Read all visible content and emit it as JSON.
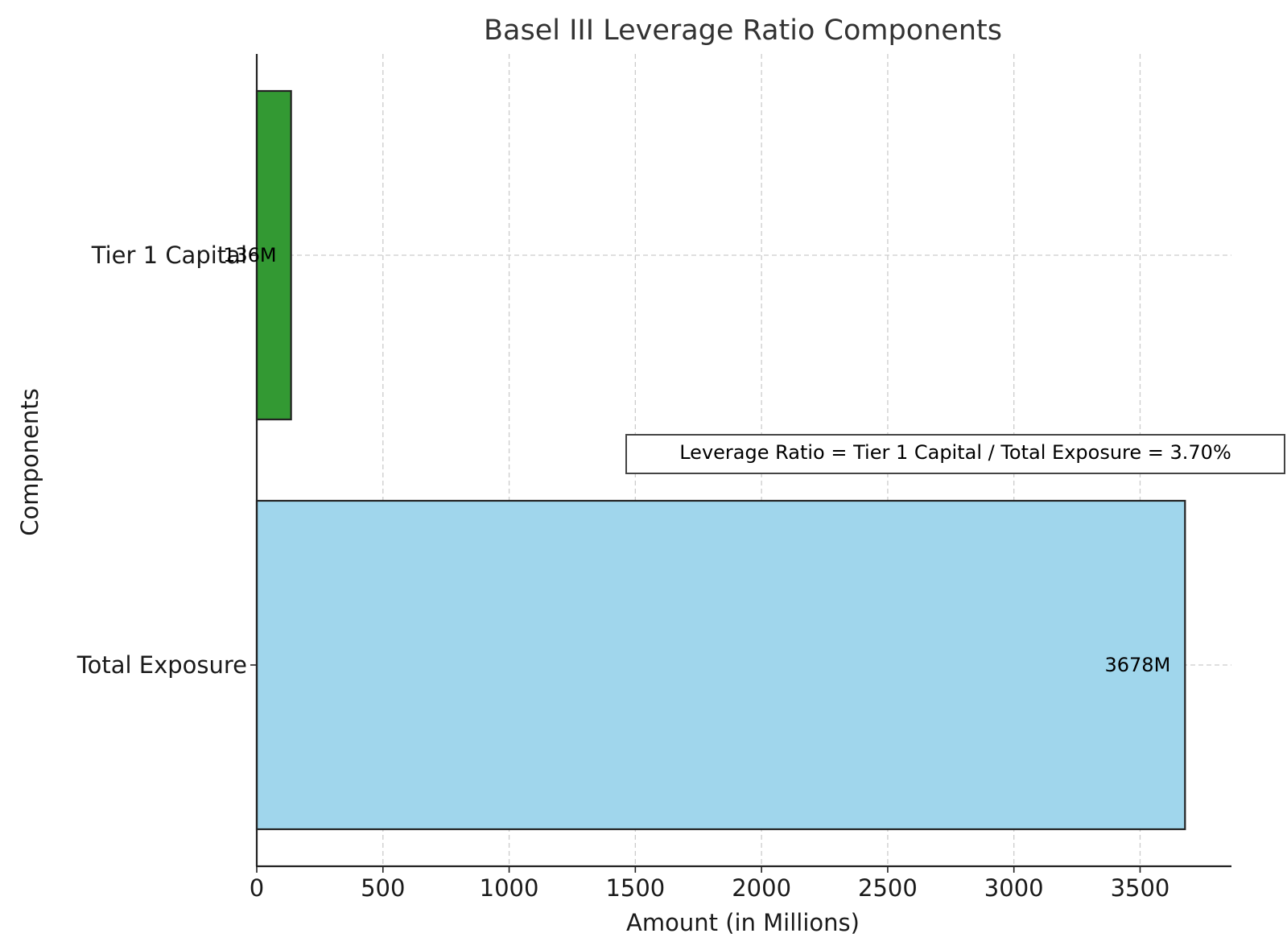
{
  "chart_data": {
    "type": "bar",
    "orientation": "horizontal",
    "title": "Basel III Leverage Ratio Components",
    "xlabel": "Amount (in Millions)",
    "ylabel": "Components",
    "categories": [
      "Total Exposure",
      "Tier 1 Capital"
    ],
    "values": [
      3678,
      136
    ],
    "value_labels": [
      "3678M",
      "136M"
    ],
    "colors": [
      "#a0d6ec",
      "#339933"
    ],
    "xlim": [
      0,
      3862
    ],
    "xticks": [
      0,
      500,
      1000,
      1500,
      2000,
      2500,
      3000,
      3500
    ],
    "grid": true,
    "annotation": "Leverage Ratio = Tier 1 Capital / Total Exposure = 3.70%"
  }
}
